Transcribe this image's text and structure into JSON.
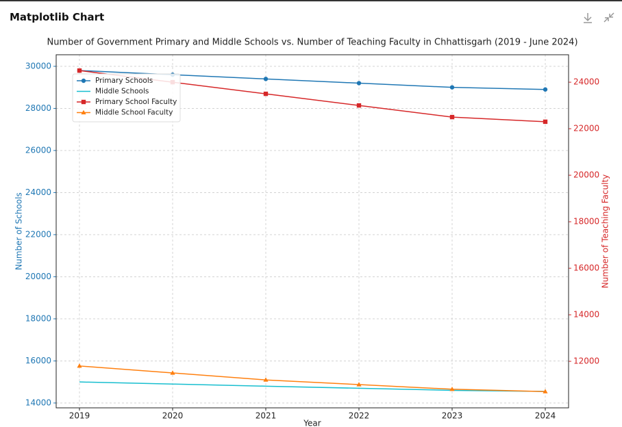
{
  "header": {
    "title": "Matplotlib Chart"
  },
  "chart_data": {
    "type": "line",
    "title": "Number of Government Primary and Middle Schools vs. Number of Teaching Faculty in Chhattisgarh (2019 - June 2024)",
    "xlabel": "Year",
    "ylabel": "Number of Schools",
    "y2label": "Number of Teaching Faculty",
    "x": [
      2019,
      2020,
      2021,
      2022,
      2023,
      2024
    ],
    "xlim": [
      2018.75,
      2024.25
    ],
    "xticks": [
      2019,
      2020,
      2021,
      2022,
      2023,
      2024
    ],
    "ylim": [
      13770,
      30550
    ],
    "yticks": [
      14000,
      16000,
      18000,
      20000,
      22000,
      24000,
      26000,
      28000,
      30000
    ],
    "y2lim": [
      10000,
      25180
    ],
    "y2ticks": [
      12000,
      14000,
      16000,
      18000,
      20000,
      22000,
      24000
    ],
    "grid": true,
    "legend": "upper left",
    "series": [
      {
        "name": "Primary Schools",
        "color": "#1f77b4",
        "marker": "o",
        "values": [
          29800,
          29600,
          29400,
          29200,
          29000,
          28900
        ]
      },
      {
        "name": "Middle Schools",
        "color": "#17becf",
        "values": [
          15000,
          14900,
          14800,
          14700,
          14600,
          14550
        ]
      },
      {
        "name": "Primary School Faculty",
        "color": "#d62728",
        "marker": "s",
        "axis": "y2",
        "values": [
          24500,
          24000,
          23500,
          23000,
          22500,
          22300
        ]
      },
      {
        "name": "Middle School Faculty",
        "color": "#ff7f0e",
        "marker": "^",
        "axis": "y2",
        "values": [
          11800,
          11500,
          11200,
          11000,
          10800,
          10700
        ]
      }
    ]
  }
}
